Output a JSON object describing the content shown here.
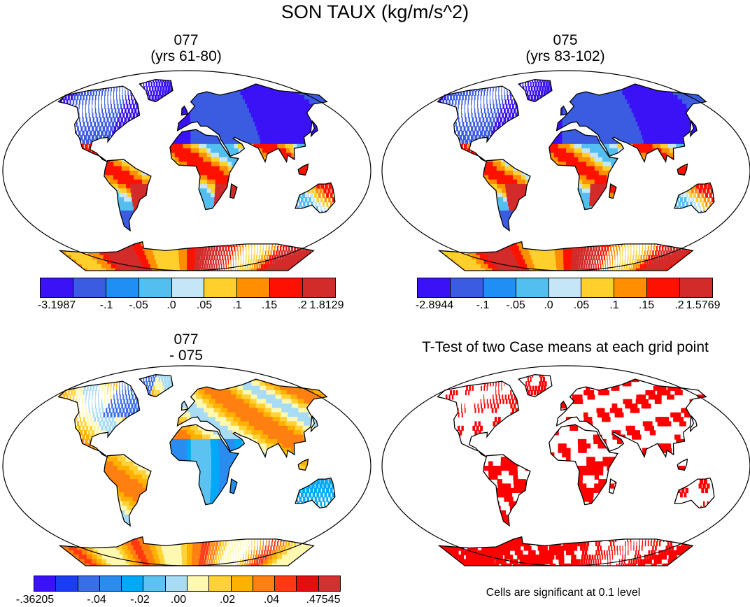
{
  "title": "SON TAUX (kg/m/s^2)",
  "panels": [
    {
      "id": "p1",
      "title_line1": "077",
      "title_line2": "(yrs 61-80)",
      "kind": "field"
    },
    {
      "id": "p2",
      "title_line1": "075",
      "title_line2": "(yrs 83-102)",
      "kind": "field"
    },
    {
      "id": "p3",
      "title_line1": "077",
      "title_line2": "- 075",
      "kind": "diff"
    },
    {
      "id": "p4",
      "title_line1": "T-Test of two Case means at each grid point",
      "title_line2": "",
      "kind": "ttest"
    }
  ],
  "colorbars": {
    "cb1": {
      "colors": [
        "#3a12f5",
        "#3b5ce0",
        "#1f8ff5",
        "#52bff0",
        "#c5e6f7",
        "#ffd02b",
        "#ff8f00",
        "#ff1100",
        "#d32a2a"
      ],
      "labels": [
        "-3.1987",
        "-.1",
        "-.05",
        ".0",
        ".05",
        ".1",
        ".15",
        ".2",
        "1.8129"
      ]
    },
    "cb2": {
      "colors": [
        "#3a12f5",
        "#3b5ce0",
        "#1f8ff5",
        "#52bff0",
        "#c5e6f7",
        "#ffd02b",
        "#ff8f00",
        "#ff1100",
        "#d32a2a"
      ],
      "labels": [
        "-2.8944",
        "-.1",
        "-.05",
        ".0",
        ".05",
        ".1",
        ".15",
        ".2",
        "1.5769"
      ]
    },
    "cb3": {
      "colors": [
        "#3a12f5",
        "#1a3df0",
        "#3a6ee8",
        "#2b8cf0",
        "#00a8f8",
        "#5cc2f2",
        "#a8dcf5",
        "#fff8b0",
        "#ffd238",
        "#ffb000",
        "#ff8010",
        "#ff3a10",
        "#e01010",
        "#d33030"
      ],
      "labels": [
        "-.36205",
        "-.04",
        "-.02",
        ".00",
        ".02",
        ".04",
        ".47545"
      ]
    }
  },
  "note": "Cells are significant at 0.1 level",
  "significance_color": "#ff0000",
  "map_projection": "robinson-like global"
}
